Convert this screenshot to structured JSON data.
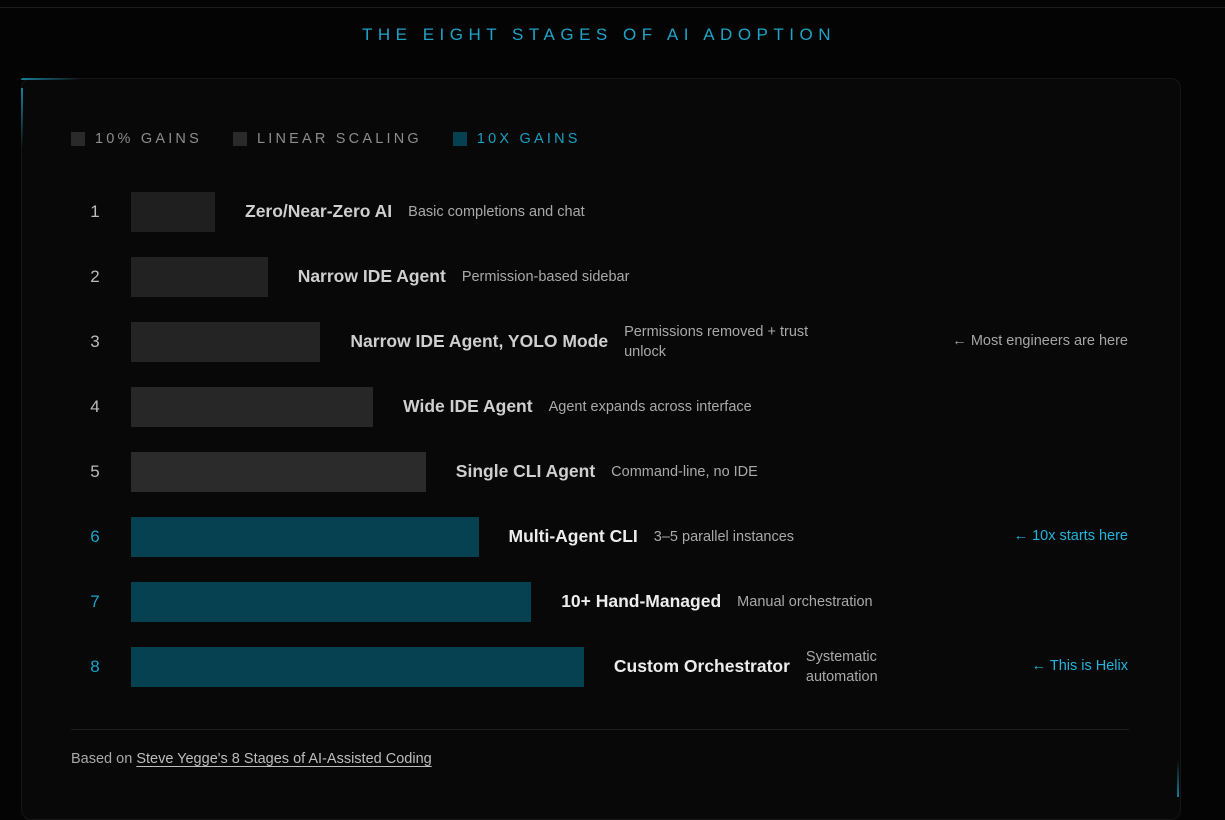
{
  "title": "THE EIGHT STAGES OF AI ADOPTION",
  "legend": [
    {
      "label": "10% GAINS",
      "color": "#2a2a2a"
    },
    {
      "label": "LINEAR SCALING",
      "color": "#2a2a2a"
    },
    {
      "label": "10X GAINS",
      "color": "#054150"
    }
  ],
  "chart_data": {
    "type": "bar",
    "orientation": "horizontal",
    "title": "THE EIGHT STAGES OF AI ADOPTION",
    "categories": [
      "Zero/Near-Zero AI",
      "Narrow IDE Agent",
      "Narrow IDE Agent, YOLO Mode",
      "Wide IDE Agent",
      "Single CLI Agent",
      "Multi-Agent CLI",
      "10+ Hand-Managed",
      "Custom Orchestrator"
    ],
    "values": [
      1,
      2,
      3,
      4,
      5,
      6,
      7,
      8
    ],
    "rows": [
      {
        "rank": "1",
        "name": "Zero/Near-Zero AI",
        "desc": "Basic completions and chat",
        "group": "10% gains",
        "note": "",
        "color": "#1f1f1f"
      },
      {
        "rank": "2",
        "name": "Narrow IDE Agent",
        "desc": "Permission-based sidebar",
        "group": "10% gains",
        "note": "",
        "color": "#222222"
      },
      {
        "rank": "3",
        "name": "Narrow IDE Agent, YOLO Mode",
        "desc": "Permissions removed + trust unlock",
        "group": "10% gains",
        "note": "← Most engineers are here",
        "color": "#242424"
      },
      {
        "rank": "4",
        "name": "Wide IDE Agent",
        "desc": "Agent expands across interface",
        "group": "linear scaling",
        "note": "",
        "color": "#272727"
      },
      {
        "rank": "5",
        "name": "Single CLI Agent",
        "desc": "Command-line, no IDE",
        "group": "linear scaling",
        "note": "",
        "color": "#2b2b2b"
      },
      {
        "rank": "6",
        "name": "Multi-Agent CLI",
        "desc": "3–5 parallel instances",
        "group": "10x gains",
        "note": "← 10x starts here",
        "color": "#054150"
      },
      {
        "rank": "7",
        "name": "10+ Hand-Managed",
        "desc": "Manual orchestration",
        "group": "10x gains",
        "note": "",
        "color": "#054150"
      },
      {
        "rank": "8",
        "name": "Custom Orchestrator",
        "desc": "Systematic automation",
        "group": "10x gains",
        "note": "← This is Helix",
        "color": "#054150"
      }
    ]
  },
  "footer": {
    "prefix": "Based on ",
    "link": "Steve Yegge's 8 Stages of AI-Assisted Coding"
  }
}
